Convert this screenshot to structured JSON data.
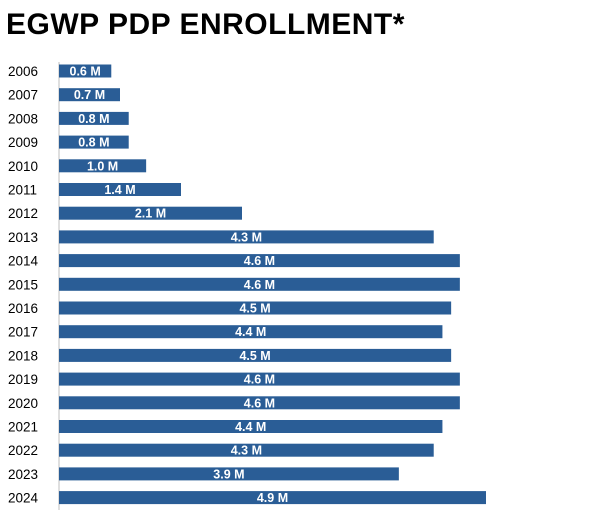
{
  "chart_data": {
    "type": "bar",
    "orientation": "horizontal",
    "title": "EGWP PDP ENROLLMENT*",
    "xlabel": "",
    "ylabel": "",
    "categories": [
      "2006",
      "2007",
      "2008",
      "2009",
      "2010",
      "2011",
      "2012",
      "2013",
      "2014",
      "2015",
      "2016",
      "2017",
      "2018",
      "2019",
      "2020",
      "2021",
      "2022",
      "2023",
      "2024"
    ],
    "values": [
      0.6,
      0.7,
      0.8,
      0.8,
      1.0,
      1.4,
      2.1,
      4.3,
      4.6,
      4.6,
      4.5,
      4.4,
      4.5,
      4.6,
      4.6,
      4.4,
      4.3,
      3.9,
      4.9
    ],
    "labels": [
      "0.6 M",
      "0.7 M",
      "0.8 M",
      "0.8 M",
      "1.0 M",
      "1.4 M",
      "2.1 M",
      "4.3 M",
      "4.6 M",
      "4.6 M",
      "4.5 M",
      "4.4 M",
      "4.5 M",
      "4.6 M",
      "4.6 M",
      "4.4 M",
      "4.3 M",
      "3.9 M",
      "4.9 M"
    ],
    "xlim": [
      0,
      4.9
    ],
    "bar_color": "#2a5d96",
    "axis_color": "#bfbfbf",
    "grid": false,
    "legend": "none"
  }
}
